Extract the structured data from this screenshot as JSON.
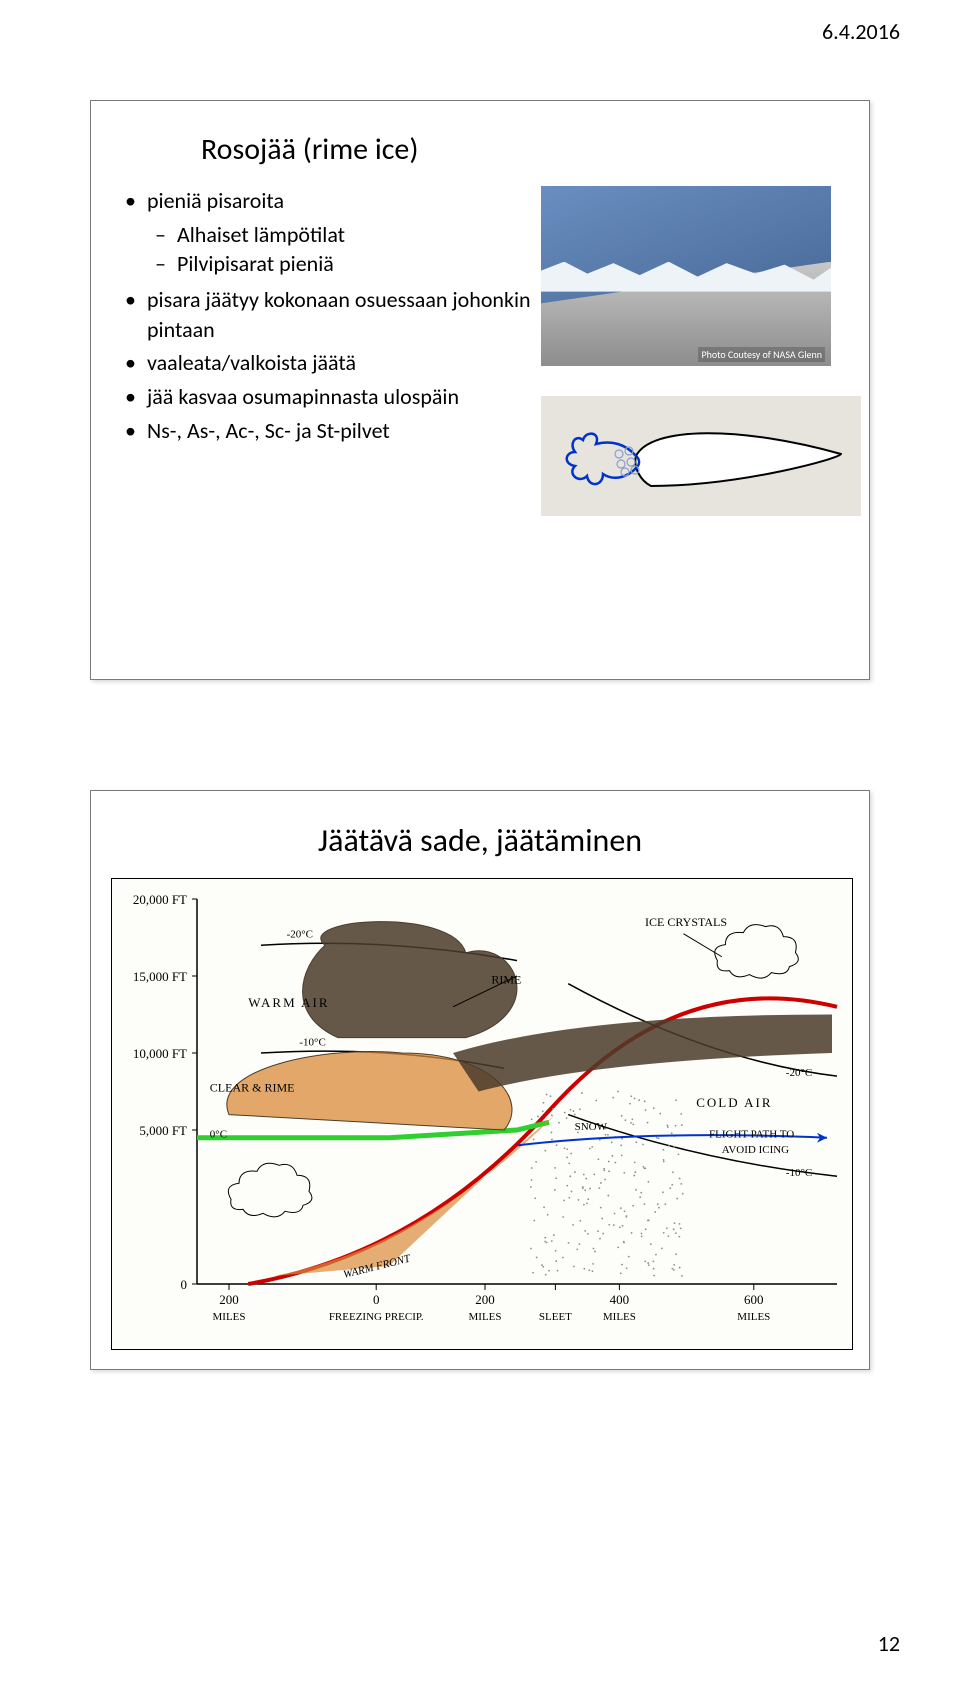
{
  "header": {
    "date": "6.4.2016"
  },
  "footer": {
    "page_number": "12"
  },
  "slide1": {
    "title": "Rosojää (rime ice)",
    "bullets": [
      {
        "text": "pieniä pisaroita",
        "sub": [
          "Alhaiset lämpötilat",
          "Pilvipisarat pieniä"
        ]
      },
      {
        "text": "pisara jäätyy kokonaan osuessaan johonkin pintaan"
      },
      {
        "text": "vaaleata/valkoista jäätä"
      },
      {
        "text": "jää kasvaa osumapinnasta ulospäin"
      },
      {
        "text": "Ns-, As-, Ac-, Sc- ja St-pilvet"
      }
    ],
    "photo_credit": "Photo Coutesy of NASA Glenn",
    "airfoil": {
      "outline_color": "#000000",
      "fill_color": "#ffffff",
      "ice_outline": "#0033cc",
      "droplet_color": "#8e9dc9"
    }
  },
  "slide2": {
    "title": "Jäätävä sade, jäätäminen",
    "chart": {
      "y_labels": [
        "20,000 FT",
        "15,000 FT",
        "10,000 FT",
        "5,000 FT",
        "0"
      ],
      "y_label_fontsize": 13,
      "x_ticks": [
        {
          "pos": 0.05,
          "top": "200",
          "bottom": "MILES"
        },
        {
          "pos": 0.28,
          "top": "0",
          "bottom": "FREEZING PRECIP."
        },
        {
          "pos": 0.45,
          "top": "200",
          "bottom": "MILES"
        },
        {
          "pos": 0.56,
          "top": "",
          "bottom": "SLEET"
        },
        {
          "pos": 0.66,
          "top": "400",
          "bottom": "MILES"
        },
        {
          "pos": 0.87,
          "top": "600",
          "bottom": "MILES"
        }
      ],
      "annotations": {
        "warm_air": "WARM  AIR",
        "cold_air": "COLD  AIR",
        "clear_rime": "CLEAR & RIME",
        "rime": "RIME",
        "ice_crystals": "ICE CRYSTALS",
        "warm_front": "WARM FRONT",
        "snow": "SNOW",
        "flight_path": "FLIGHT PATH TO AVOID ICING",
        "minus20": "-20°C",
        "minus20_r": "-20°C",
        "minus10": "-10°C",
        "minus10_r": "-10°C",
        "zero": "0°C"
      },
      "colors": {
        "green_line": "#2fcf2f",
        "red_line": "#cc0000",
        "blue_line": "#0033cc",
        "isotherm": "#000000",
        "cloud_outline": "#000000",
        "dark_shading": "#4b3b2a",
        "orange_shading": "#d98a3a",
        "gray_precip": "#8e8e8e",
        "axis": "#000000",
        "background": "#fdfdf9"
      },
      "annotation_fontsize": 13
    }
  }
}
